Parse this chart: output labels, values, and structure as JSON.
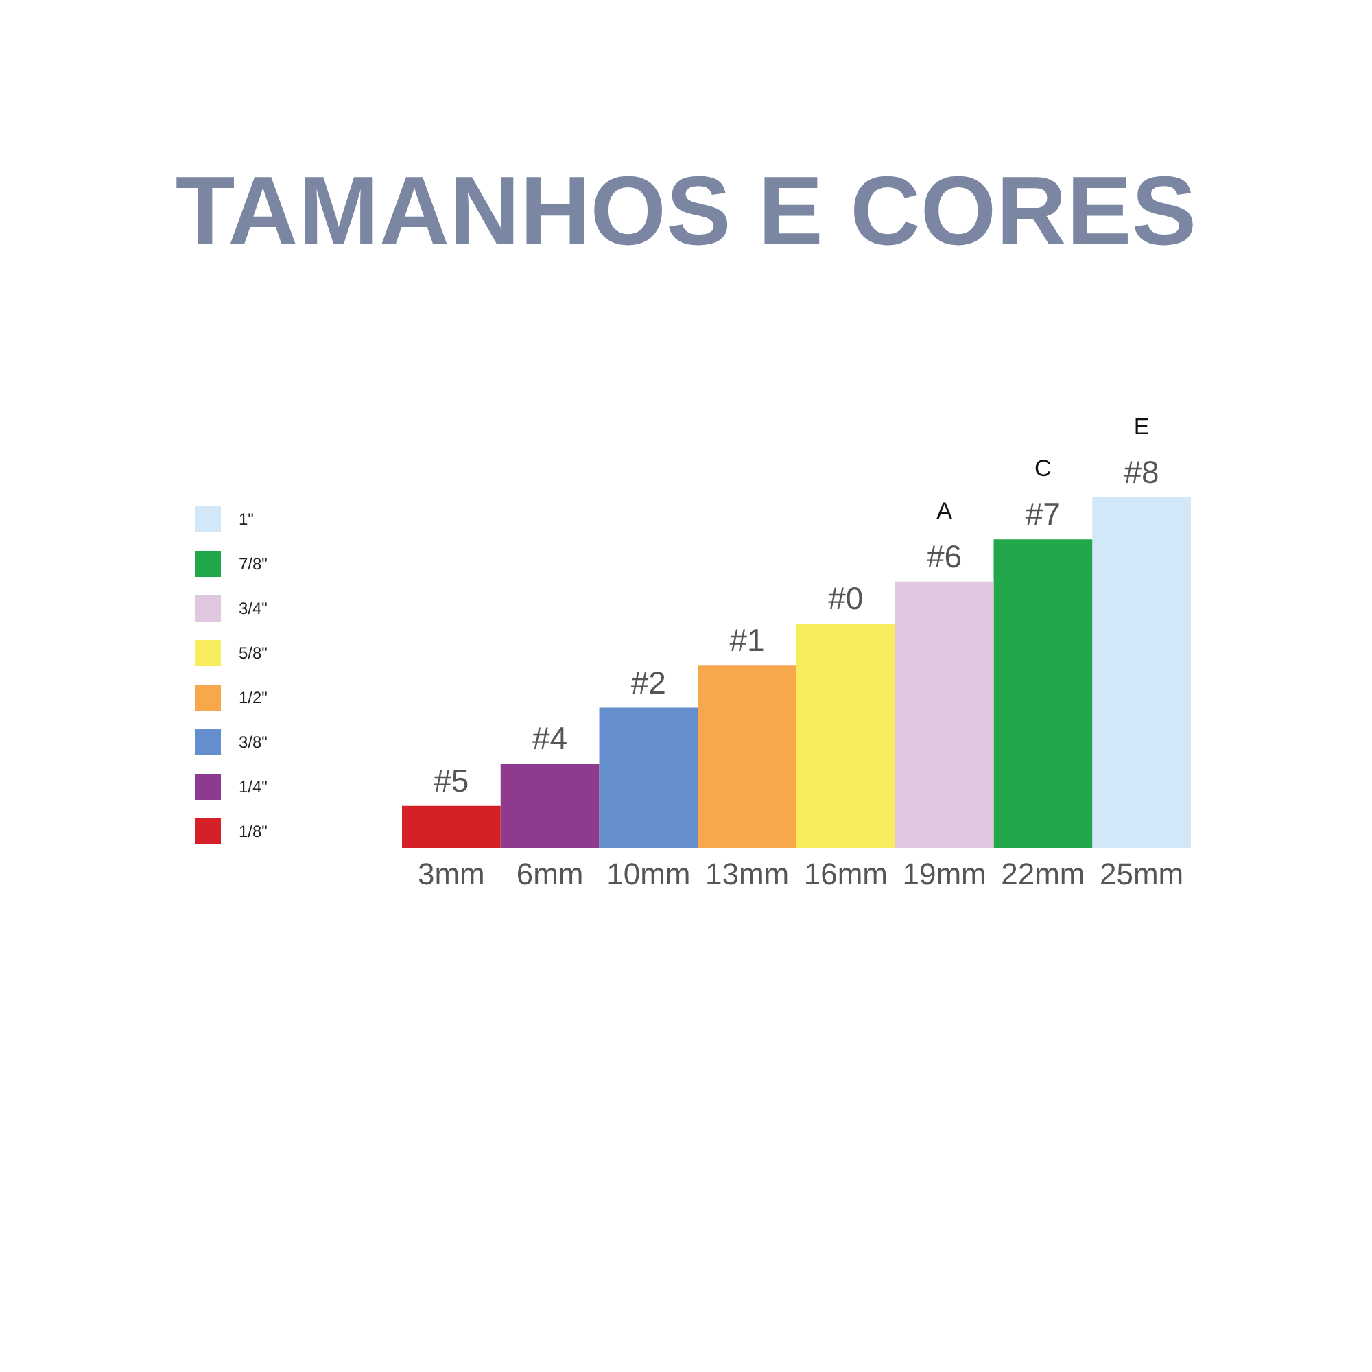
{
  "chart_data": {
    "type": "bar",
    "title": "TAMANHOS E CORES",
    "categories": [
      "#5",
      "#4",
      "#2",
      "#1",
      "#0",
      "#6",
      "#7",
      "#8"
    ],
    "tick_labels": "x",
    "stacked": true,
    "legend": "left",
    "series": [
      {
        "name": "1\"",
        "color": "#d2e8f8",
        "values": [
          null,
          null,
          null,
          null,
          null,
          null,
          null,
          25
        ],
        "value_labels": [
          null,
          null,
          null,
          null,
          null,
          null,
          null,
          "25mm"
        ]
      },
      {
        "name": "7/8\"",
        "color": "#22a84a",
        "values": [
          null,
          null,
          null,
          null,
          null,
          null,
          22,
          null
        ],
        "value_labels": [
          null,
          null,
          null,
          null,
          null,
          null,
          "22mm",
          null
        ]
      },
      {
        "name": "3/4\"",
        "color": "#e0c8e0",
        "values": [
          null,
          null,
          null,
          null,
          null,
          19,
          null,
          null
        ],
        "value_labels": [
          null,
          null,
          null,
          null,
          null,
          "19mm",
          null,
          null
        ]
      },
      {
        "name": "5/8\"",
        "color": "#f7ec5c",
        "values": [
          null,
          null,
          null,
          null,
          16,
          null,
          null,
          null
        ],
        "value_labels": [
          null,
          null,
          null,
          null,
          "16mm",
          null,
          null,
          null
        ]
      },
      {
        "name": "1/2\"",
        "color": "#f7a84c",
        "values": [
          null,
          null,
          null,
          13,
          null,
          null,
          null,
          null
        ],
        "value_labels": [
          null,
          null,
          null,
          "13mm",
          null,
          null,
          null,
          null
        ]
      },
      {
        "name": "3/8\"",
        "color": "#648fcc",
        "values": [
          null,
          null,
          10,
          null,
          null,
          null,
          null,
          null
        ],
        "value_labels": [
          null,
          null,
          "10mm",
          null,
          null,
          null,
          null,
          null
        ]
      },
      {
        "name": "1/4\"",
        "color": "#8e3a8e",
        "values": [
          null,
          6,
          null,
          null,
          null,
          null,
          null,
          null
        ],
        "value_labels": [
          null,
          "6mm",
          null,
          null,
          null,
          null,
          null,
          null
        ]
      },
      {
        "name": "1/8\"",
        "color": "#d42027",
        "values": [
          3,
          null,
          null,
          null,
          null,
          null,
          null,
          null
        ],
        "value_labels": [
          "3mm",
          null,
          null,
          null,
          null,
          null,
          null,
          null
        ]
      }
    ],
    "annotations": [
      {
        "text": "A",
        "x": "#6",
        "y": 19
      },
      {
        "text": "C",
        "x": "#7",
        "y": 22
      },
      {
        "text": "E",
        "x": "#8",
        "y": 25
      }
    ]
  }
}
